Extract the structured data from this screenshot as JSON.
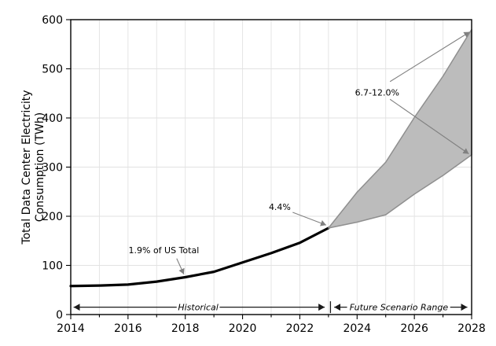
{
  "chart_data": {
    "type": "line",
    "title": "",
    "xlabel": "",
    "ylabel_lines": [
      "Total Data Center Electricity",
      "Consumption (TWh)"
    ],
    "xlim": [
      2014,
      2028
    ],
    "ylim": [
      0,
      600
    ],
    "x_major_ticks": [
      2014,
      2016,
      2018,
      2020,
      2022,
      2024,
      2026,
      2028
    ],
    "x_minor_ticks": [
      2015,
      2017,
      2019,
      2021,
      2023,
      2025,
      2027
    ],
    "y_major_ticks": [
      0,
      100,
      200,
      300,
      400,
      500,
      600
    ],
    "grid": {
      "vertical_every_year": true,
      "horizontal_major": true,
      "legend": "none"
    },
    "series": [
      {
        "name": "Historical",
        "type": "line",
        "color": "#000000",
        "x": [
          2014,
          2015,
          2016,
          2017,
          2018,
          2019,
          2020,
          2021,
          2022,
          2023
        ],
        "values": [
          58,
          59,
          61,
          67,
          76,
          87,
          106,
          125,
          146,
          176
        ]
      },
      {
        "name": "Future Scenario Range",
        "type": "band",
        "fill_color": "#bcbcbc",
        "edge_color": "#8f8f8f",
        "x": [
          2023,
          2024,
          2025,
          2026,
          2027,
          2028
        ],
        "low": [
          176,
          188,
          203,
          245,
          283,
          325
        ],
        "high": [
          176,
          249,
          310,
          401,
          485,
          580
        ]
      }
    ],
    "annotations": [
      {
        "text": "1.9% of US Total",
        "x": 2017.25,
        "y": 131,
        "arrows": [
          {
            "x1": 2017.7,
            "y1": 114,
            "x2": 2017.95,
            "y2": 82
          }
        ]
      },
      {
        "text": "4.4%",
        "x": 2021.3,
        "y": 219,
        "arrows": [
          {
            "x1": 2021.75,
            "y1": 208,
            "x2": 2022.92,
            "y2": 182
          }
        ]
      },
      {
        "text": "6.7-12.0%",
        "x": 2024.7,
        "y": 452,
        "arrows": [
          {
            "x1": 2025.15,
            "y1": 474,
            "x2": 2027.93,
            "y2": 575
          },
          {
            "x1": 2025.15,
            "y1": 438,
            "x2": 2027.9,
            "y2": 327
          }
        ]
      }
    ],
    "span_labels": {
      "y": 15,
      "historical": {
        "text": "Historical",
        "x_center": 2018.45,
        "arrow_left_end": 2014.1,
        "text_gap_left": 2017.7,
        "text_gap_right": 2019.2,
        "arrow_right_end": 2022.87
      },
      "divider_x": 2023.07,
      "future": {
        "text": "Future Scenario Range",
        "x_center": 2025.46,
        "arrow_left_end": 2023.2,
        "text_gap_left": 2023.65,
        "text_gap_right": 2027.25,
        "arrow_right_end": 2027.85
      }
    },
    "colors": {
      "background": "#ffffff",
      "grid": "#e2e2e2",
      "spine": "#000000",
      "tick_label": "#000000",
      "annotation_arrow": "#808080",
      "span_arrow": "#1a1a1a"
    }
  }
}
